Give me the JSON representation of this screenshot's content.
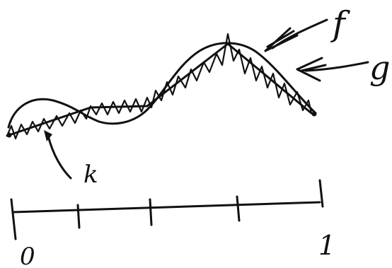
{
  "labels": {
    "f": "f",
    "g": "g",
    "k": "k",
    "axis_start": "0",
    "axis_end": "1"
  },
  "colors": {
    "ink": "#111111",
    "background": "#ffffff"
  }
}
